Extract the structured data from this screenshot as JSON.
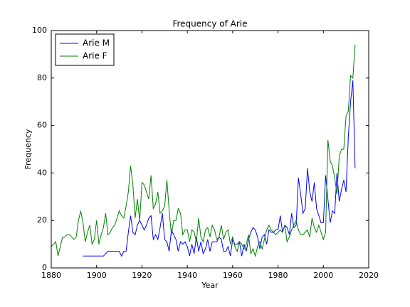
{
  "chart_data": {
    "type": "line",
    "title": "Frequency of Arie",
    "xlabel": "Year",
    "ylabel": "Frequency",
    "x": [
      1880,
      1881,
      1882,
      1883,
      1884,
      1885,
      1886,
      1887,
      1888,
      1889,
      1890,
      1891,
      1892,
      1893,
      1894,
      1895,
      1896,
      1897,
      1898,
      1899,
      1900,
      1901,
      1902,
      1903,
      1904,
      1905,
      1906,
      1907,
      1908,
      1909,
      1910,
      1911,
      1912,
      1913,
      1914,
      1915,
      1916,
      1917,
      1918,
      1919,
      1920,
      1921,
      1922,
      1923,
      1924,
      1925,
      1926,
      1927,
      1928,
      1929,
      1930,
      1931,
      1932,
      1933,
      1934,
      1935,
      1936,
      1937,
      1938,
      1939,
      1940,
      1941,
      1942,
      1943,
      1944,
      1945,
      1946,
      1947,
      1948,
      1949,
      1950,
      1951,
      1952,
      1953,
      1954,
      1955,
      1956,
      1957,
      1958,
      1959,
      1960,
      1961,
      1962,
      1963,
      1964,
      1965,
      1966,
      1967,
      1968,
      1969,
      1970,
      1971,
      1972,
      1973,
      1974,
      1975,
      1976,
      1977,
      1978,
      1979,
      1980,
      1981,
      1982,
      1983,
      1984,
      1985,
      1986,
      1987,
      1988,
      1989,
      1990,
      1991,
      1992,
      1993,
      1994,
      1995,
      1996,
      1997,
      1998,
      1999,
      2000,
      2001,
      2002,
      2003,
      2004,
      2005,
      2006,
      2007,
      2008,
      2009,
      2010,
      2011,
      2012,
      2013,
      2014
    ],
    "series": [
      {
        "name": "Arie M",
        "color": "#0000ff",
        "values": [
          null,
          null,
          null,
          null,
          null,
          null,
          null,
          null,
          null,
          null,
          null,
          null,
          null,
          null,
          5,
          5,
          5,
          5,
          5,
          5,
          5,
          5,
          5,
          5,
          6,
          7,
          7,
          7,
          7,
          7,
          7,
          5,
          7,
          7,
          15,
          22,
          15,
          14,
          18,
          20,
          18,
          16,
          18,
          21,
          22,
          12,
          14,
          12,
          17,
          23,
          12,
          11,
          7,
          16,
          14,
          12,
          7,
          11,
          10,
          11,
          9,
          5,
          10,
          6,
          13,
          7,
          11,
          6,
          8,
          12,
          7,
          11,
          11,
          11,
          13,
          12,
          7,
          7,
          9,
          5,
          12,
          10,
          10,
          11,
          5,
          10,
          7,
          12,
          15,
          17,
          16,
          13,
          8,
          13,
          14,
          10,
          16,
          15,
          15,
          16,
          16,
          22,
          15,
          18,
          17,
          14,
          23,
          17,
          18,
          38,
          31,
          23,
          25,
          42,
          32,
          28,
          36,
          25,
          22,
          19,
          19,
          39,
          29,
          19,
          24,
          23,
          40,
          28,
          33,
          37,
          32,
          55,
          70,
          79,
          42
        ]
      },
      {
        "name": "Arie F",
        "color": "#008000",
        "values": [
          9,
          10,
          11,
          5,
          9,
          13,
          13,
          14,
          14,
          13,
          12,
          13,
          20,
          24,
          19,
          11,
          15,
          18,
          10,
          12,
          20,
          10,
          14,
          17,
          23,
          14,
          15,
          17,
          18,
          21,
          24,
          22,
          21,
          26,
          32,
          43,
          35,
          21,
          29,
          20,
          36,
          35,
          32,
          29,
          39,
          25,
          27,
          32,
          23,
          24,
          26,
          37,
          24,
          14,
          20,
          20,
          25,
          23,
          14,
          16,
          16,
          11,
          16,
          15,
          11,
          21,
          13,
          11,
          16,
          17,
          13,
          18,
          16,
          12,
          13,
          18,
          12,
          15,
          16,
          10,
          13,
          9,
          7,
          11,
          10,
          8,
          10,
          14,
          6,
          8,
          5,
          9,
          11,
          8,
          12,
          16,
          18,
          16,
          15,
          14,
          15,
          16,
          15,
          18,
          11,
          13,
          16,
          18,
          20,
          16,
          14,
          14,
          15,
          16,
          13,
          21,
          17,
          15,
          18,
          15,
          12,
          15,
          54,
          45,
          43,
          38,
          31,
          47,
          50,
          50,
          64,
          66,
          81,
          80,
          94
        ]
      }
    ],
    "xlim": [
      1880,
      2020
    ],
    "xticks": [
      1880,
      1900,
      1920,
      1940,
      1960,
      1980,
      2000,
      2020
    ],
    "ylim": [
      0,
      100
    ],
    "yticks": [
      0,
      20,
      40,
      60,
      80,
      100
    ],
    "legend": "upper left"
  }
}
